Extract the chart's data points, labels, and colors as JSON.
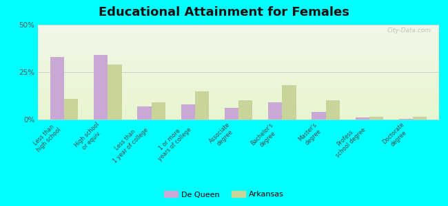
{
  "title": "Educational Attainment for Females",
  "categories": [
    "Less than\nhigh school",
    "High school\nor equiv.",
    "Less than\n1 year of college",
    "1 or more\nyears of college",
    "Associate\ndegree",
    "Bachelor's\ndegree",
    "Master's\ndegree",
    "Profess.\nschool degree",
    "Doctorate\ndegree"
  ],
  "de_queen": [
    33,
    34,
    7,
    8,
    6,
    9,
    4,
    1,
    0.5
  ],
  "arkansas": [
    11,
    29,
    9,
    15,
    10,
    18,
    10,
    1.5,
    1.5
  ],
  "de_queen_color": "#c9a8d4",
  "arkansas_color": "#c8d49a",
  "background_top": "#f0f8e8",
  "background_bottom": "#e8f5d0",
  "outer_background": "#00ffff",
  "ylim": [
    0,
    50
  ],
  "yticks": [
    0,
    25,
    50
  ],
  "ytick_labels": [
    "0%",
    "25%",
    "50%"
  ],
  "title_fontsize": 13,
  "legend_labels": [
    "De Queen",
    "Arkansas"
  ]
}
